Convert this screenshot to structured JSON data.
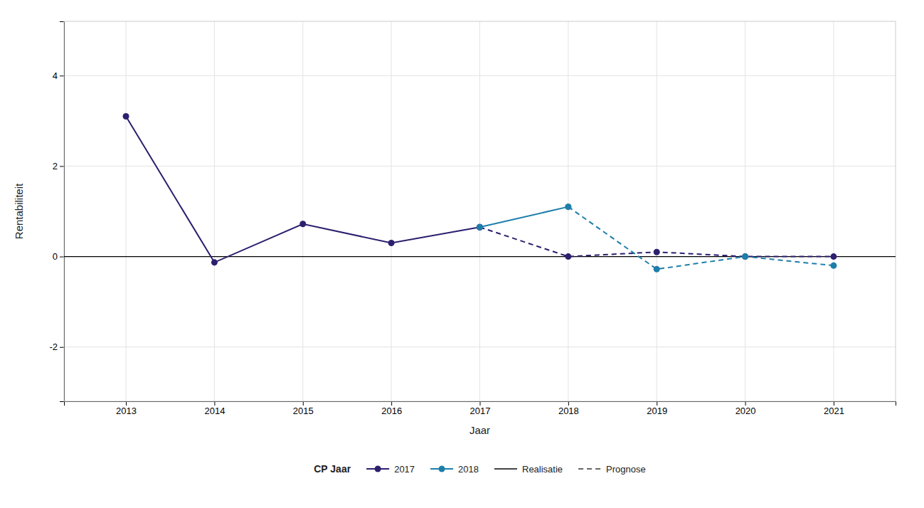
{
  "chart_data": {
    "type": "line",
    "xlabel": "Jaar",
    "ylabel": "Rentabiliteit",
    "x": [
      2013,
      2014,
      2015,
      2016,
      2017,
      2018,
      2019,
      2020,
      2021
    ],
    "series": [
      {
        "name": "2017",
        "color": "#2d1f6e",
        "line_style": "solid",
        "marker": "circle",
        "values": [
          3.1,
          -0.13,
          0.72,
          0.3,
          0.65,
          null,
          null,
          null,
          null
        ]
      },
      {
        "name": "2017",
        "color": "#2d1f6e",
        "line_style": "dashed",
        "marker": "circle",
        "values": [
          null,
          null,
          null,
          null,
          0.65,
          0.0,
          0.1,
          0.0,
          0.0
        ]
      },
      {
        "name": "2018",
        "color": "#1e7eaa",
        "line_style": "solid",
        "marker": "circle",
        "values": [
          null,
          null,
          null,
          null,
          0.65,
          1.1,
          null,
          null,
          null
        ]
      },
      {
        "name": "2018",
        "color": "#1e7eaa",
        "line_style": "dashed",
        "marker": "circle",
        "values": [
          null,
          null,
          null,
          null,
          null,
          1.1,
          -0.28,
          0.0,
          -0.2
        ]
      }
    ],
    "legend_title": "CP Jaar",
    "line_style_legend": [
      {
        "name": "Realisatie",
        "line_style": "solid",
        "color": "#444444"
      },
      {
        "name": "Prognose",
        "line_style": "dashed",
        "color": "#666666"
      }
    ],
    "hline": {
      "value": 0,
      "color": "#000000"
    },
    "xlim": [
      2012.3,
      2021.7
    ],
    "ylim": [
      -3.2,
      5.2
    ],
    "xticks": [
      2013,
      2014,
      2015,
      2016,
      2017,
      2018,
      2019,
      2020,
      2021
    ],
    "yticks": [
      -2,
      0,
      2,
      4
    ],
    "grid": true,
    "legend": "bottom"
  }
}
